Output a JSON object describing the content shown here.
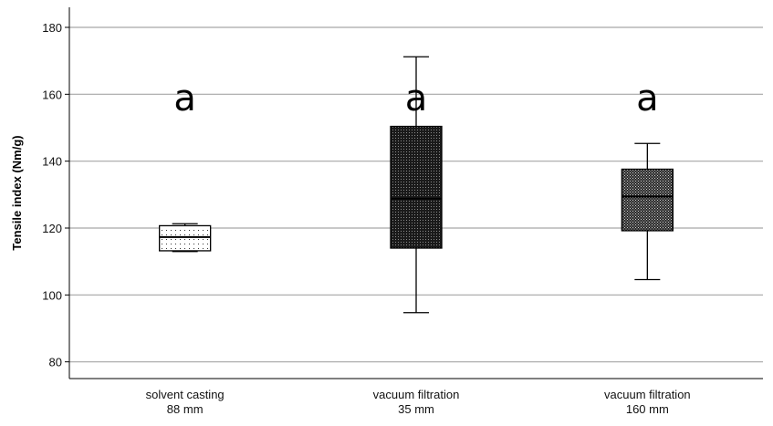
{
  "chart_data": {
    "type": "boxplot",
    "ylabel": "Tensile index (Nm/g)",
    "xlabel": "",
    "ylim": [
      75,
      186
    ],
    "yticks": [
      80,
      100,
      120,
      140,
      160,
      180
    ],
    "grid": true,
    "categories": [
      {
        "line1": "solvent casting",
        "line2": "88 mm"
      },
      {
        "line1": "vacuum filtration",
        "line2": "35 mm"
      },
      {
        "line1": "vacuum filtration",
        "line2": "160 mm"
      }
    ],
    "boxes": [
      {
        "min": 113.0,
        "q1": 113.2,
        "median": 117.3,
        "q3": 120.7,
        "max": 121.3,
        "fill": "sparse-dots",
        "significance": "a"
      },
      {
        "min": 94.7,
        "q1": 114.0,
        "median": 128.8,
        "q3": 150.4,
        "max": 171.2,
        "fill": "dense-dark",
        "significance": "a"
      },
      {
        "min": 104.6,
        "q1": 119.2,
        "median": 129.4,
        "q3": 137.6,
        "max": 145.3,
        "fill": "checker",
        "significance": "a"
      }
    ],
    "significance_y": 159
  },
  "colors": {
    "grid": "#a6a6a6",
    "axis": "#000000",
    "box_line": "#000000"
  }
}
